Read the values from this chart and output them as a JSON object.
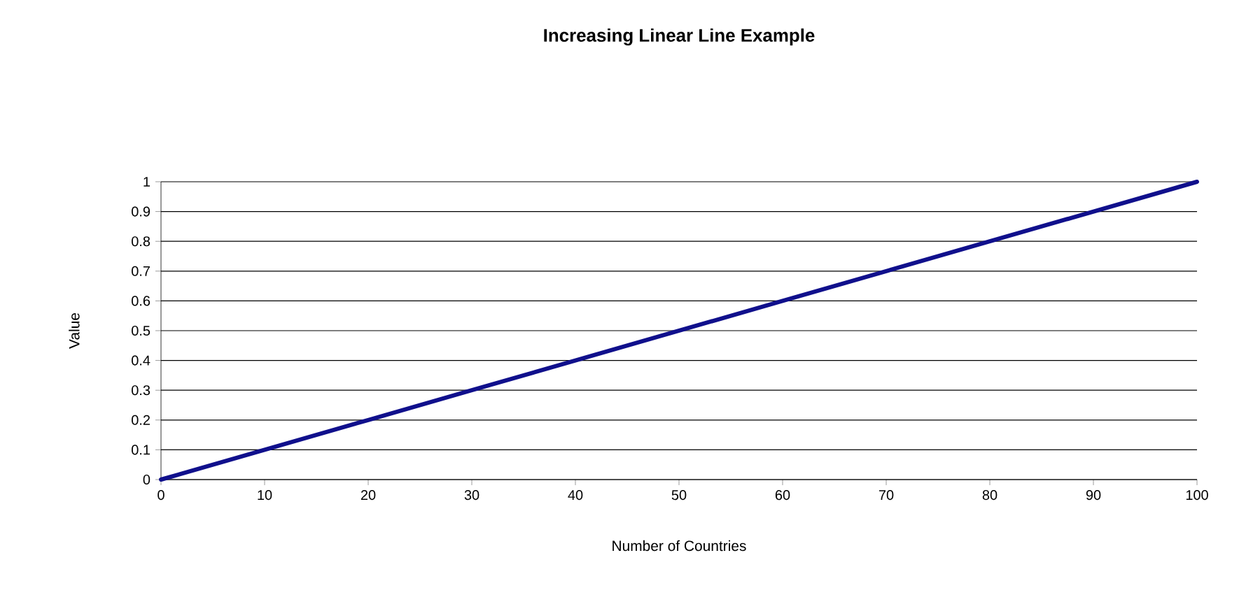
{
  "chart_data": {
    "type": "line",
    "title": "Increasing Linear Line Example",
    "xlabel": "Number of Countries",
    "ylabel": "Value",
    "x": [
      0,
      10,
      20,
      30,
      40,
      50,
      60,
      70,
      80,
      90,
      100
    ],
    "series": [
      {
        "color": "#10108c",
        "values": [
          0,
          0.1,
          0.2,
          0.3,
          0.4,
          0.5,
          0.6,
          0.7,
          0.8,
          0.9,
          1
        ]
      }
    ],
    "xlim": [
      0,
      100
    ],
    "xticks": [
      0,
      10,
      20,
      30,
      40,
      50,
      60,
      70,
      80,
      90,
      100
    ],
    "ylim": [
      0,
      1
    ],
    "yticks": [
      0,
      0.1,
      0.2,
      0.3,
      0.4,
      0.5,
      0.6,
      0.7,
      0.8,
      0.9,
      1
    ],
    "grid": "y"
  }
}
